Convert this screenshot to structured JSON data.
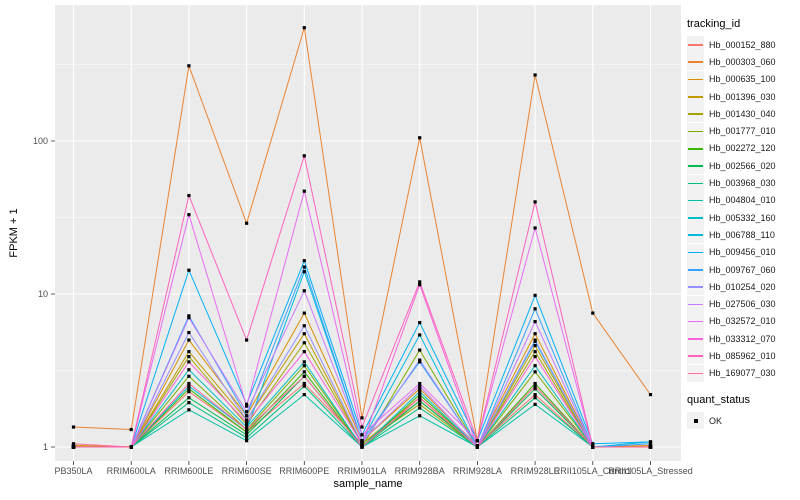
{
  "figure": {
    "background": "#FFFFFF",
    "panel_background": "#EBEBEB",
    "gridline_color": "#FFFFFF",
    "axis_text_color": "#4D4D4D",
    "tick_mark_color": "#333333",
    "marker_color": "#000000"
  },
  "chart_data": {
    "type": "line",
    "title": "",
    "xlabel": "sample_name",
    "ylabel": "FPKM + 1",
    "y_scale": "log10",
    "y_ticks": [
      1,
      10,
      100
    ],
    "y_minor_ticks": [
      3.162,
      31.62,
      316.2
    ],
    "ylim": [
      0.81,
      776
    ],
    "grid": "on",
    "legend_position": "right",
    "series_legend_title": "tracking_id",
    "marker_legend": {
      "title": "quant_status",
      "label": "OK",
      "shape": "filled-square"
    },
    "x_categories": [
      "PB350LA",
      "RRIM600LA",
      "RRIM600LE",
      "RRIM600SE",
      "RRIM600PE",
      "RRIM901LA",
      "RRIM928BA",
      "RRIM928LA",
      "RRIM928LE",
      "RRII105LA_Control",
      "RRII105LA_Stressed"
    ],
    "series": [
      {
        "name": "Hb_000152_880",
        "color": "#F8766D",
        "values": [
          1.02,
          1.0,
          2.3,
          1.25,
          2.6,
          1.05,
          2.0,
          1.02,
          2.2,
          1.0,
          1.02
        ]
      },
      {
        "name": "Hb_000303_060",
        "color": "#EA8331",
        "values": [
          1.35,
          1.3,
          310,
          29,
          550,
          1.55,
          105,
          1.1,
          270,
          7.5,
          2.2
        ]
      },
      {
        "name": "Hb_000635_100",
        "color": "#D89000",
        "values": [
          1.02,
          1.0,
          5.0,
          1.6,
          7.5,
          1.1,
          2.4,
          1.02,
          5.5,
          1.0,
          1.02
        ]
      },
      {
        "name": "Hb_001396_030",
        "color": "#C09B00",
        "values": [
          1.02,
          1.0,
          4.2,
          1.5,
          5.5,
          1.05,
          2.1,
          1.0,
          4.6,
          1.0,
          1.0
        ]
      },
      {
        "name": "Hb_001430_040",
        "color": "#A3A500",
        "values": [
          1.0,
          1.0,
          3.9,
          1.4,
          4.8,
          1.05,
          1.9,
          1.0,
          4.2,
          1.0,
          1.0
        ]
      },
      {
        "name": "Hb_001777_010",
        "color": "#7CAE00",
        "values": [
          1.0,
          1.0,
          2.9,
          1.3,
          3.4,
          1.0,
          4.3,
          1.0,
          3.1,
          1.0,
          1.0
        ]
      },
      {
        "name": "Hb_002272_120",
        "color": "#39B600",
        "values": [
          1.0,
          1.0,
          2.4,
          1.25,
          3.1,
          1.0,
          2.2,
          1.0,
          2.6,
          1.0,
          1.0
        ]
      },
      {
        "name": "Hb_002566_020",
        "color": "#00BB4E",
        "values": [
          1.0,
          1.0,
          2.1,
          1.2,
          2.9,
          1.0,
          2.0,
          1.0,
          2.4,
          1.0,
          1.0
        ]
      },
      {
        "name": "Hb_003968_030",
        "color": "#00BF7D",
        "values": [
          1.0,
          1.0,
          1.95,
          1.15,
          2.5,
          1.0,
          1.8,
          1.0,
          2.1,
          1.0,
          1.0
        ]
      },
      {
        "name": "Hb_004804_010",
        "color": "#00C1A3",
        "values": [
          1.0,
          1.0,
          1.75,
          1.1,
          2.2,
          1.0,
          1.6,
          1.0,
          1.9,
          1.0,
          1.0
        ]
      },
      {
        "name": "Hb_005332_160",
        "color": "#00BFC4",
        "values": [
          1.0,
          1.0,
          3.2,
          1.35,
          3.6,
          1.0,
          2.3,
          1.0,
          3.4,
          1.0,
          1.0
        ]
      },
      {
        "name": "Hb_006788_110",
        "color": "#00BAE0",
        "values": [
          1.0,
          1.0,
          2.5,
          1.3,
          14.0,
          1.1,
          5.4,
          1.0,
          4.9,
          1.0,
          1.08
        ]
      },
      {
        "name": "Hb_009456_010",
        "color": "#00B0F6",
        "values": [
          1.0,
          1.0,
          14.3,
          1.9,
          16.5,
          1.2,
          6.5,
          1.1,
          9.8,
          1.05,
          1.08
        ]
      },
      {
        "name": "Hb_009767_060",
        "color": "#35A2FF",
        "values": [
          1.0,
          1.0,
          7.2,
          1.6,
          15.0,
          1.1,
          3.6,
          1.0,
          8.0,
          1.0,
          1.05
        ]
      },
      {
        "name": "Hb_010254_020",
        "color": "#9590FF",
        "values": [
          1.0,
          1.0,
          5.6,
          1.5,
          6.2,
          1.05,
          3.7,
          1.0,
          5.0,
          1.0,
          1.0
        ]
      },
      {
        "name": "Hb_027506_030",
        "color": "#C77CFF",
        "values": [
          1.0,
          1.0,
          7.0,
          1.7,
          10.5,
          1.1,
          2.5,
          1.0,
          6.6,
          1.0,
          1.0
        ]
      },
      {
        "name": "Hb_032572_010",
        "color": "#E76BF3",
        "values": [
          1.0,
          1.0,
          33,
          1.85,
          47,
          1.2,
          2.6,
          1.1,
          27,
          1.0,
          1.0
        ]
      },
      {
        "name": "Hb_033312_070",
        "color": "#FA62DB",
        "values": [
          1.0,
          1.0,
          3.6,
          1.45,
          4.2,
          1.05,
          11.5,
          1.0,
          3.9,
          1.0,
          1.0
        ]
      },
      {
        "name": "Hb_085962_010",
        "color": "#FF62BC",
        "values": [
          1.0,
          1.0,
          44,
          5.0,
          80,
          1.35,
          12,
          1.1,
          40,
          1.0,
          1.0
        ]
      },
      {
        "name": "Hb_169077_030",
        "color": "#FF6A98",
        "values": [
          1.05,
          1.0,
          2.6,
          1.3,
          2.9,
          1.0,
          2.1,
          1.0,
          2.5,
          1.0,
          1.0
        ]
      }
    ]
  }
}
